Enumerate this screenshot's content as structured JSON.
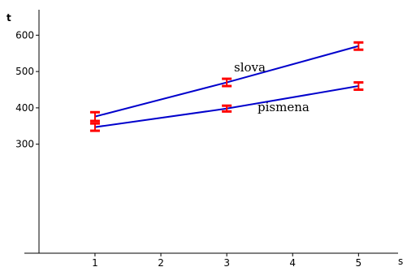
{
  "chart_data": {
    "type": "line",
    "title": "",
    "xlabel": "s",
    "ylabel": "t",
    "x_ticks": [
      1,
      2,
      3,
      4,
      5
    ],
    "y_ticks": [
      300,
      400,
      500,
      600
    ],
    "xlim": [
      0.15,
      5.6
    ],
    "ylim": [
      0,
      670
    ],
    "grid": false,
    "legend": "none",
    "series": [
      {
        "name": "slova",
        "color": "#0000cc",
        "error_color": "#ff0000",
        "points": [
          {
            "x": 1,
            "y": 376,
            "err": 12
          },
          {
            "x": 3,
            "y": 470,
            "err": 10
          },
          {
            "x": 5,
            "y": 570,
            "err": 10
          }
        ]
      },
      {
        "name": "pismena",
        "color": "#0000cc",
        "error_color": "#ff0000",
        "points": [
          {
            "x": 1,
            "y": 347,
            "err": 10
          },
          {
            "x": 3,
            "y": 398,
            "err": 8
          },
          {
            "x": 5,
            "y": 460,
            "err": 10
          }
        ]
      }
    ]
  }
}
